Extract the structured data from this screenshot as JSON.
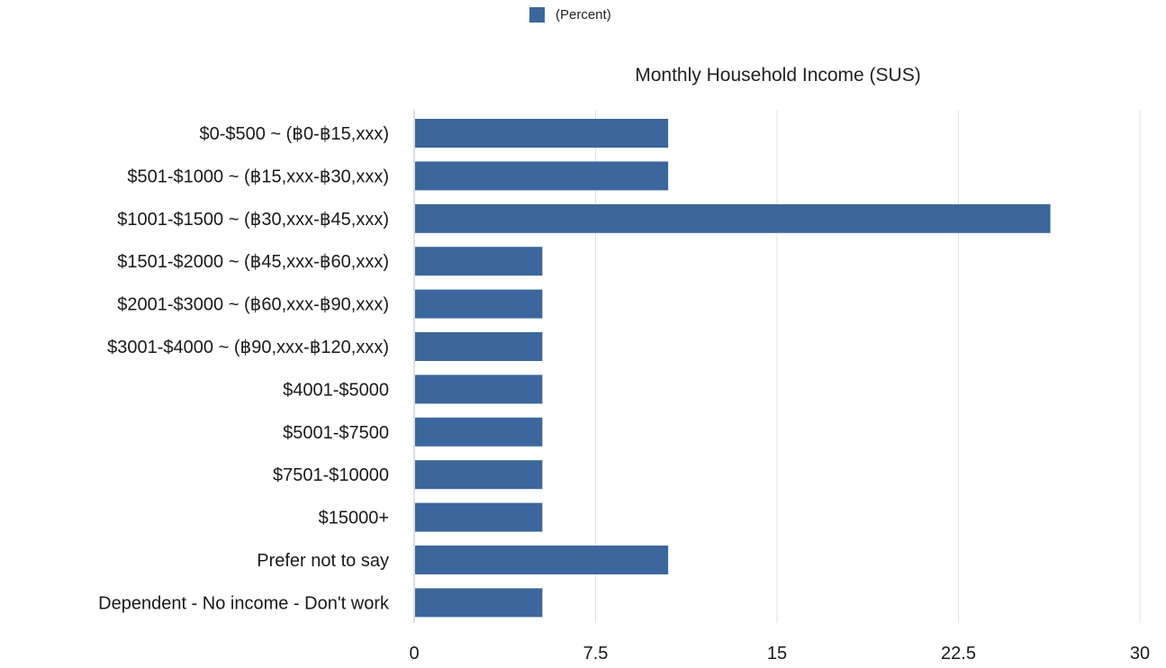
{
  "chart_data": {
    "type": "bar",
    "orientation": "horizontal",
    "title": "Monthly Household Income (SUS)",
    "legend": {
      "position": "top-center",
      "label": "(Percent)"
    },
    "color": "#3b679c",
    "categories": [
      "$0-$500 ~ (฿0-฿15,xxx)",
      "$501-$1000 ~ (฿15,xxx-฿30,xxx)",
      "$1001-$1500 ~ (฿30,xxx-฿45,xxx)",
      "$1501-$2000 ~ (฿45,xxx-฿60,xxx)",
      "$2001-$3000 ~ (฿60,xxx-฿90,xxx)",
      "$3001-$4000 ~ (฿90,xxx-฿120,xxx)",
      "$4001-$5000",
      "$5001-$7500",
      "$7501-$10000",
      "$15000+",
      "Prefer not to say",
      "Dependent - No income - Don't work"
    ],
    "series": [
      {
        "name": "(Percent)",
        "values": [
          10.5,
          10.5,
          26.3,
          5.3,
          5.3,
          5.3,
          5.3,
          5.3,
          5.3,
          5.3,
          10.5,
          5.3
        ]
      }
    ],
    "xlim": [
      0,
      30
    ],
    "xticks": [
      "0",
      "7.5",
      "15",
      "22.5",
      "30"
    ],
    "grid": true
  }
}
